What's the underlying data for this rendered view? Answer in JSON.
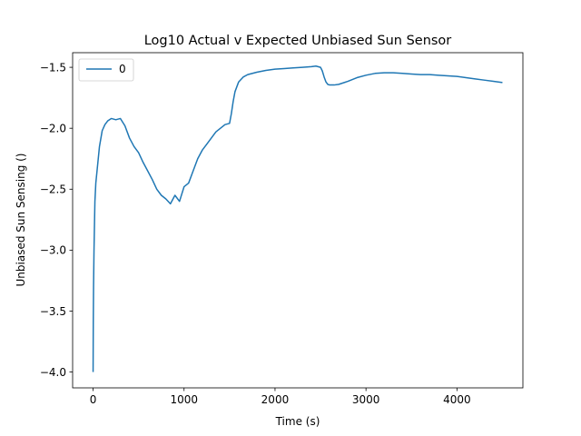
{
  "chart_data": {
    "type": "line",
    "title": "Log10 Actual v Expected Unbiased Sun Sensor",
    "xlabel": "Time (s)",
    "ylabel": "Unbiased Sun Sensing ()",
    "xlim": [
      -225,
      4725
    ],
    "ylim": [
      -4.13,
      -1.38
    ],
    "xticks": [
      0,
      1000,
      2000,
      3000,
      4000
    ],
    "xtick_labels": [
      "0",
      "1000",
      "2000",
      "3000",
      "4000"
    ],
    "yticks": [
      -4.0,
      -3.5,
      -3.0,
      -2.5,
      -2.0,
      -1.5
    ],
    "ytick_labels": [
      "−4.0",
      "−3.5",
      "−3.0",
      "−2.5",
      "−2.0",
      "−1.5"
    ],
    "grid": false,
    "legend_position": "upper left",
    "series": [
      {
        "name": "0",
        "color": "#1f77b4",
        "x": [
          0,
          2,
          5,
          10,
          20,
          30,
          50,
          70,
          100,
          130,
          160,
          200,
          250,
          300,
          350,
          400,
          450,
          500,
          550,
          600,
          650,
          700,
          750,
          800,
          850,
          900,
          950,
          1000,
          1050,
          1100,
          1150,
          1200,
          1250,
          1300,
          1350,
          1400,
          1450,
          1500,
          1520,
          1540,
          1560,
          1580,
          1600,
          1650,
          1700,
          1800,
          1900,
          2000,
          2100,
          2200,
          2300,
          2400,
          2450,
          2500,
          2520,
          2540,
          2560,
          2580,
          2600,
          2650,
          2700,
          2800,
          2900,
          3000,
          3100,
          3200,
          3300,
          3400,
          3500,
          3600,
          3700,
          3800,
          3900,
          4000,
          4100,
          4200,
          4300,
          4400,
          4500
        ],
        "y": [
          -4.0,
          -3.6,
          -3.3,
          -3.0,
          -2.6,
          -2.45,
          -2.3,
          -2.15,
          -2.02,
          -1.97,
          -1.94,
          -1.92,
          -1.93,
          -1.92,
          -1.98,
          -2.08,
          -2.15,
          -2.2,
          -2.28,
          -2.35,
          -2.42,
          -2.5,
          -2.55,
          -2.58,
          -2.62,
          -2.55,
          -2.6,
          -2.48,
          -2.45,
          -2.35,
          -2.25,
          -2.18,
          -2.13,
          -2.08,
          -2.03,
          -2.0,
          -1.97,
          -1.96,
          -1.88,
          -1.78,
          -1.7,
          -1.66,
          -1.62,
          -1.58,
          -1.56,
          -1.54,
          -1.525,
          -1.515,
          -1.51,
          -1.505,
          -1.5,
          -1.495,
          -1.49,
          -1.5,
          -1.53,
          -1.58,
          -1.62,
          -1.64,
          -1.645,
          -1.645,
          -1.64,
          -1.615,
          -1.585,
          -1.565,
          -1.55,
          -1.545,
          -1.545,
          -1.55,
          -1.555,
          -1.56,
          -1.56,
          -1.565,
          -1.57,
          -1.575,
          -1.585,
          -1.595,
          -1.605,
          -1.615,
          -1.625
        ]
      }
    ]
  }
}
